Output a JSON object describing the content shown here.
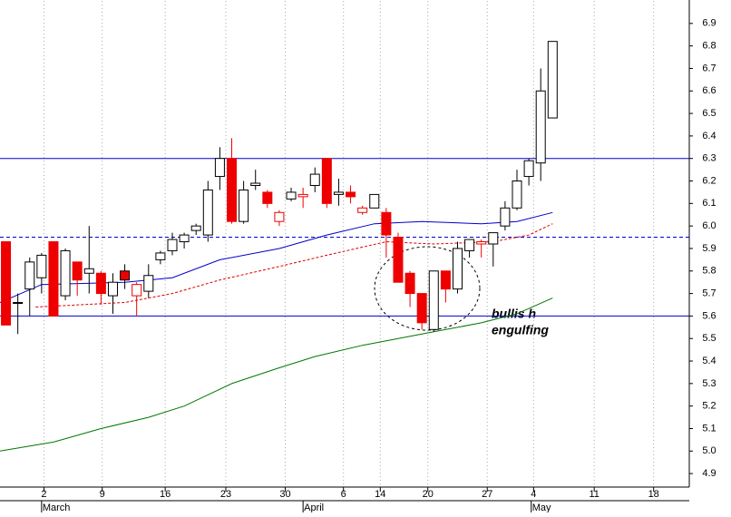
{
  "chart_data": {
    "type": "candlestick",
    "x": [
      0,
      1,
      2,
      3,
      4,
      5,
      6,
      7,
      8,
      9,
      10,
      11,
      12,
      13,
      14,
      15,
      16,
      17,
      18,
      19,
      20,
      21,
      22,
      23,
      24,
      25,
      26,
      27,
      28,
      29,
      30,
      31,
      32,
      33,
      34,
      35,
      36,
      37,
      38,
      39,
      40,
      41,
      42,
      43,
      44,
      45,
      46
    ],
    "open": [
      5.93,
      5.66,
      5.72,
      5.77,
      5.93,
      5.69,
      5.84,
      5.79,
      5.79,
      5.69,
      5.8,
      5.69,
      5.71,
      5.85,
      5.89,
      5.93,
      5.98,
      5.96,
      6.22,
      6.3,
      6.02,
      6.18,
      6.15,
      6.02,
      6.12,
      6.13,
      6.18,
      6.3,
      6.14,
      6.15,
      6.06,
      6.08,
      6.06,
      5.95,
      5.79,
      5.7,
      5.54,
      5.8,
      5.72,
      5.89,
      5.92,
      5.92,
      6.0,
      6.08,
      6.22,
      6.28,
      6.48
    ],
    "high": [
      5.93,
      5.7,
      5.86,
      5.88,
      5.93,
      5.9,
      5.84,
      6.0,
      5.8,
      5.79,
      5.83,
      5.75,
      5.83,
      5.89,
      5.97,
      5.97,
      6.01,
      6.2,
      6.35,
      6.39,
      6.2,
      6.25,
      6.16,
      6.07,
      6.17,
      6.17,
      6.26,
      6.3,
      6.21,
      6.18,
      6.09,
      6.14,
      6.08,
      5.97,
      5.8,
      5.7,
      5.8,
      5.8,
      5.93,
      5.94,
      5.94,
      5.97,
      6.11,
      6.25,
      6.3,
      6.7,
      6.82
    ],
    "low": [
      5.56,
      5.52,
      5.6,
      5.7,
      5.6,
      5.67,
      5.69,
      5.7,
      5.65,
      5.61,
      5.72,
      5.6,
      5.68,
      5.83,
      5.87,
      5.9,
      5.96,
      5.93,
      6.16,
      6.01,
      6.01,
      6.16,
      6.08,
      6.0,
      6.11,
      6.08,
      6.15,
      6.08,
      6.09,
      6.1,
      6.05,
      6.08,
      5.86,
      5.75,
      5.64,
      5.54,
      5.53,
      5.66,
      5.7,
      5.86,
      5.86,
      5.82,
      5.98,
      6.07,
      6.18,
      6.2,
      6.48
    ],
    "close": [
      5.56,
      5.66,
      5.84,
      5.87,
      5.6,
      5.89,
      5.76,
      5.81,
      5.7,
      5.75,
      5.76,
      5.74,
      5.78,
      5.88,
      5.94,
      5.96,
      6.0,
      6.16,
      6.3,
      6.02,
      6.16,
      6.19,
      6.1,
      6.06,
      6.15,
      6.14,
      6.23,
      6.1,
      6.15,
      6.13,
      6.08,
      6.14,
      5.96,
      5.75,
      5.7,
      5.57,
      5.8,
      5.72,
      5.9,
      5.94,
      5.93,
      5.97,
      6.08,
      6.2,
      6.29,
      6.6,
      6.82
    ],
    "up_color": "#ffffff",
    "down_color": "#ee0000",
    "edge_color": "#000000",
    "moving_averages": [
      {
        "color": "#0000cc",
        "dash": false,
        "x": [
          -0.5,
          3,
          10,
          14,
          18,
          23,
          27,
          31,
          35,
          40,
          43,
          46
        ],
        "values": [
          5.66,
          5.74,
          5.75,
          5.77,
          5.85,
          5.9,
          5.96,
          6.01,
          6.02,
          6.01,
          6.02,
          6.06
        ]
      },
      {
        "color": "#dd0000",
        "dash": true,
        "x": [
          2.5,
          10,
          14,
          18,
          23,
          27,
          32,
          36,
          41,
          44,
          46
        ],
        "values": [
          5.64,
          5.66,
          5.7,
          5.76,
          5.82,
          5.87,
          5.93,
          5.92,
          5.93,
          5.96,
          6.01
        ]
      },
      {
        "color": "#007700",
        "dash": false,
        "x": [
          -0.5,
          4,
          8,
          12,
          15,
          19,
          23,
          26,
          30,
          33,
          36,
          40,
          43,
          46
        ],
        "values": [
          5.0,
          5.04,
          5.1,
          5.15,
          5.2,
          5.3,
          5.37,
          5.42,
          5.47,
          5.5,
          5.53,
          5.57,
          5.61,
          5.68
        ]
      }
    ],
    "levels": [
      {
        "value": 6.3,
        "dash": false
      },
      {
        "value": 5.95,
        "dash": true
      },
      {
        "value": 5.6,
        "dash": false
      }
    ],
    "level_color": "#0000cc",
    "annotation": [
      "bullis h",
      "engulfing"
    ],
    "xlim": [
      -0.5,
      57.5
    ],
    "xticks": [
      {
        "value": 3.2,
        "label": "2"
      },
      {
        "value": 8.1,
        "label": "9"
      },
      {
        "value": 13.4,
        "label": "16"
      },
      {
        "value": 18.5,
        "label": "23"
      },
      {
        "value": 23.5,
        "label": "30"
      },
      {
        "value": 28.4,
        "label": "6"
      },
      {
        "value": 31.5,
        "label": "14"
      },
      {
        "value": 35.5,
        "label": "20"
      },
      {
        "value": 40.5,
        "label": "27"
      },
      {
        "value": 44.4,
        "label": "4"
      },
      {
        "value": 49.5,
        "label": "11"
      },
      {
        "value": 54.5,
        "label": "18"
      }
    ],
    "months": [
      {
        "value": 3.0,
        "label": "March"
      },
      {
        "value": 25.0,
        "label": "April"
      },
      {
        "value": 44.2,
        "label": "May"
      }
    ],
    "ylim": [
      4.84,
      7.0
    ],
    "yticks": [
      4.9,
      {
        "value": 5.0,
        "label": "5.0"
      },
      5.1,
      5.2,
      5.3,
      5.4,
      5.5,
      5.6,
      5.7,
      5.8,
      5.9,
      {
        "value": 6.0,
        "label": "6.0"
      },
      6.1,
      6.2,
      6.3,
      6.4,
      6.5,
      6.6,
      6.7,
      6.8,
      6.9
    ],
    "grid": "x"
  }
}
